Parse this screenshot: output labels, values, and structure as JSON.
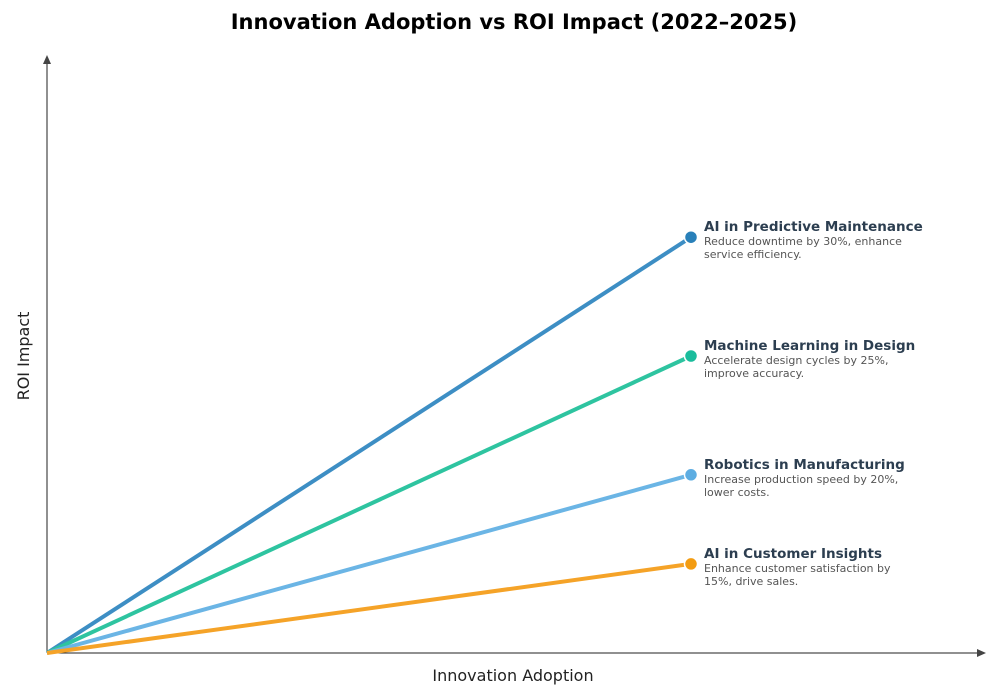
{
  "chart_data": {
    "type": "line",
    "title": "Innovation Adoption vs ROI Impact (2022–2025)",
    "xlabel": "Innovation Adoption",
    "ylabel": "ROI Impact",
    "xlim": [
      0,
      1
    ],
    "ylim": [
      0,
      1
    ],
    "grid": false,
    "ticks": false,
    "series": [
      {
        "name": "AI in Predictive Maintenance",
        "description": [
          "Reduce downtime by 30%, enhance",
          "service efficiency."
        ],
        "x": [
          0,
          0.7
        ],
        "y": [
          0,
          0.7
        ],
        "line_color": "#3d8ec4",
        "dot_color": "#2980b9"
      },
      {
        "name": "Machine Learning in Design",
        "description": [
          "Accelerate design cycles by 25%,",
          "improve accuracy."
        ],
        "x": [
          0,
          0.7
        ],
        "y": [
          0,
          0.5
        ],
        "line_color": "#2ec4a0",
        "dot_color": "#1abc9c"
      },
      {
        "name": "Robotics in Manufacturing",
        "description": [
          "Increase production speed by 20%,",
          "lower costs."
        ],
        "x": [
          0,
          0.7
        ],
        "y": [
          0,
          0.3
        ],
        "line_color": "#6bb5e5",
        "dot_color": "#5dade2"
      },
      {
        "name": "AI in Customer Insights",
        "description": [
          "Enhance customer satisfaction by",
          "15%, drive sales."
        ],
        "x": [
          0,
          0.7
        ],
        "y": [
          0,
          0.15
        ],
        "line_color": "#f5a328",
        "dot_color": "#f39c12"
      }
    ]
  }
}
